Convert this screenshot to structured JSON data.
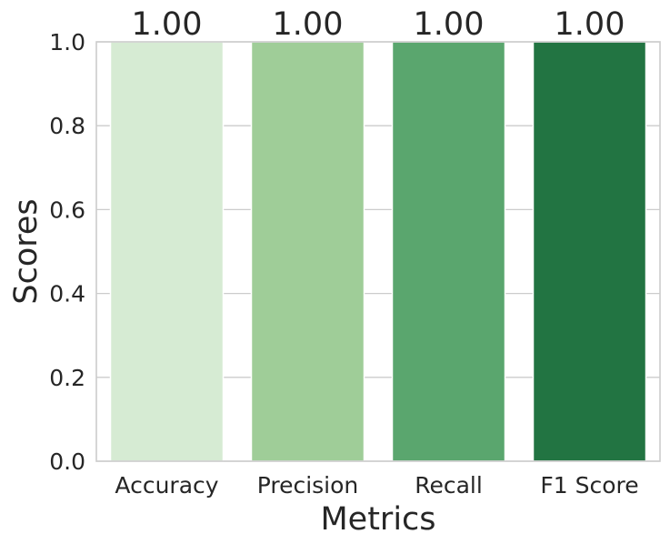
{
  "chart_data": {
    "type": "bar",
    "title": "",
    "xlabel": "Metrics",
    "ylabel": "Scores",
    "categories": [
      "Accuracy",
      "Precision",
      "Recall",
      "F1 Score"
    ],
    "values": [
      1.0,
      1.0,
      1.0,
      1.0
    ],
    "data_labels": [
      "1.00",
      "1.00",
      "1.00",
      "1.00"
    ],
    "colors": [
      "#d6ebd3",
      "#9fcd98",
      "#5aa66e",
      "#227442"
    ],
    "ylim": [
      0,
      1.0
    ],
    "yticks": [
      0.0,
      0.2,
      0.4,
      0.6,
      0.8,
      1.0
    ],
    "ytick_labels": [
      "0.0",
      "0.2",
      "0.4",
      "0.6",
      "0.8",
      "1.0"
    ],
    "grid": "horizontal",
    "legend": "none"
  }
}
